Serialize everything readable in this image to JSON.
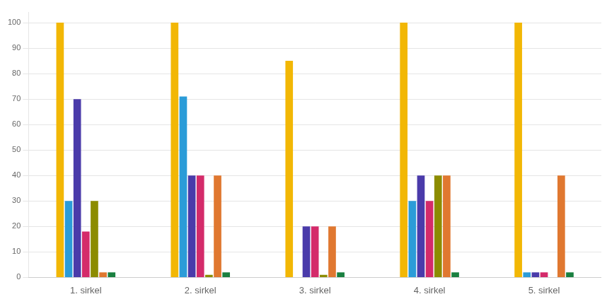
{
  "chart_data": {
    "type": "bar",
    "categories": [
      "1. sirkel",
      "2. sirkel",
      "3. sirkel",
      "4. sirkel",
      "5. sirkel"
    ],
    "series": [
      {
        "color": "#F2B705",
        "values": [
          100,
          100,
          85,
          100,
          100
        ]
      },
      {
        "color": "#2B9CD8",
        "values": [
          30,
          71,
          0,
          30,
          2
        ]
      },
      {
        "color": "#4A3BAA",
        "values": [
          70,
          40,
          20,
          40,
          2
        ]
      },
      {
        "color": "#D42B6A",
        "values": [
          18,
          40,
          20,
          30,
          2
        ]
      },
      {
        "color": "#8C8C00",
        "values": [
          30,
          1,
          1,
          40,
          0
        ]
      },
      {
        "color": "#E07830",
        "values": [
          2,
          40,
          20,
          40,
          40
        ]
      },
      {
        "color": "#1A8040",
        "values": [
          2,
          2,
          2,
          2,
          2
        ]
      }
    ],
    "ylim": [
      0,
      104
    ],
    "yticks": [
      0,
      10,
      20,
      30,
      40,
      50,
      60,
      70,
      80,
      90,
      100
    ],
    "grid": true
  }
}
